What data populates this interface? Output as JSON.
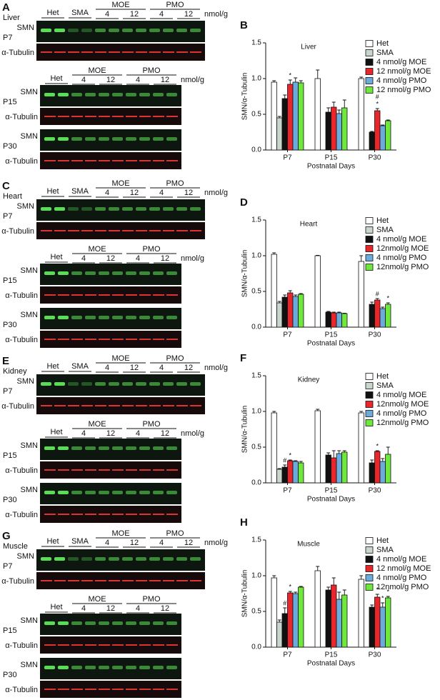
{
  "blot_panels": [
    {
      "letter": "A",
      "tissue": "Liver",
      "sections": [
        {
          "groups": [
            {
              "name": "Het"
            },
            {
              "name": "SMA"
            },
            {
              "name": "MOE",
              "doses": [
                "4",
                "12"
              ]
            },
            {
              "name": "PMO",
              "doses": [
                "4",
                "12"
              ]
            }
          ],
          "unit": "nmol/g",
          "ages": [
            {
              "age": "P7",
              "rows": [
                "SMN",
                "α-Tubulin"
              ]
            }
          ]
        },
        {
          "groups": [
            {
              "name": "Het"
            },
            {
              "name": "MOE",
              "doses": [
                "4",
                "12"
              ]
            },
            {
              "name": "PMO",
              "doses": [
                "4",
                "12"
              ]
            }
          ],
          "unit": "nmol/g",
          "ages": [
            {
              "age": "P15",
              "rows": [
                "SMN",
                "α-Tubulin"
              ]
            },
            {
              "age": "P30",
              "rows": [
                "SMN",
                "α-Tubulin"
              ]
            }
          ]
        }
      ]
    },
    {
      "letter": "C",
      "tissue": "Heart",
      "sections": [
        {
          "groups": [
            {
              "name": "Het"
            },
            {
              "name": "SMA"
            },
            {
              "name": "MOE",
              "doses": [
                "4",
                "12"
              ]
            },
            {
              "name": "PMO",
              "doses": [
                "4",
                "12"
              ]
            }
          ],
          "unit": "nmol/g",
          "ages": [
            {
              "age": "P7",
              "rows": [
                "SMN",
                "α-Tubulin"
              ]
            }
          ]
        },
        {
          "groups": [
            {
              "name": "Het"
            },
            {
              "name": "MOE",
              "doses": [
                "4",
                "12"
              ]
            },
            {
              "name": "PMO",
              "doses": [
                "4",
                "12"
              ]
            }
          ],
          "unit": "nmol/g",
          "ages": [
            {
              "age": "P15",
              "rows": [
                "SMN",
                "α-Tubulin"
              ]
            },
            {
              "age": "P30",
              "rows": [
                "SMN",
                "α-Tubulin"
              ]
            }
          ]
        }
      ]
    },
    {
      "letter": "E",
      "tissue": "Kidney",
      "sections": [
        {
          "groups": [
            {
              "name": "Het"
            },
            {
              "name": "SMA"
            },
            {
              "name": "MOE",
              "doses": [
                "4",
                "12"
              ]
            },
            {
              "name": "PMO",
              "doses": [
                "4",
                "12"
              ]
            }
          ],
          "unit": "nmol/g",
          "ages": [
            {
              "age": "P7",
              "rows": [
                "SMN",
                "α-Tubulin"
              ]
            }
          ]
        },
        {
          "groups": [
            {
              "name": "Het"
            },
            {
              "name": "MOE",
              "doses": [
                "4",
                "12"
              ]
            },
            {
              "name": "PMO",
              "doses": [
                "4",
                "12"
              ]
            }
          ],
          "unit": "nmol/g",
          "ages": [
            {
              "age": "P15",
              "rows": [
                "SMN",
                "α-Tubulin"
              ]
            },
            {
              "age": "P30",
              "rows": [
                "SMN",
                "α-Tubulin"
              ]
            }
          ]
        }
      ]
    },
    {
      "letter": "G",
      "tissue": "Muscle",
      "sections": [
        {
          "groups": [
            {
              "name": "Het"
            },
            {
              "name": "SMA"
            },
            {
              "name": "MOE",
              "doses": [
                "4",
                "12"
              ]
            },
            {
              "name": "PMO",
              "doses": [
                "4",
                "12"
              ]
            }
          ],
          "unit": "nmol/g",
          "ages": [
            {
              "age": "P7",
              "rows": [
                "SMN",
                "α-Tubulin"
              ]
            }
          ]
        },
        {
          "groups": [
            {
              "name": "Het"
            },
            {
              "name": "MOE",
              "doses": [
                "4",
                "12"
              ]
            },
            {
              "name": "PMO",
              "doses": [
                "4",
                "12"
              ]
            }
          ],
          "ages": [
            {
              "age": "P15",
              "rows": [
                "SMN",
                "α-Tubulin"
              ]
            },
            {
              "age": "P30",
              "rows": [
                "SMN",
                "α-Tubulin"
              ]
            }
          ]
        }
      ]
    }
  ],
  "chart_data": [
    {
      "type": "bar",
      "panel_label": "B",
      "title": "Liver",
      "y_label": "SMN/α-Tubulin",
      "x_label": "Postnatal Days",
      "categories": [
        "P7",
        "P15",
        "P30"
      ],
      "ylim": [
        0,
        1.5
      ],
      "yticks": [
        {
          "value": 0,
          "label": "0.0"
        },
        0.5,
        {
          "value": 1,
          "label": "1.0"
        },
        1.5
      ],
      "legend": "top-right",
      "series": [
        {
          "name": "Het",
          "color": "#ffffff",
          "values": [
            0.95,
            1.0,
            1.0
          ],
          "errors": [
            0.02,
            0.12,
            0.02
          ]
        },
        {
          "name": "SMA",
          "color": "#c9d6ce",
          "values": [
            0.45,
            null,
            null
          ],
          "errors": [
            0.02,
            null,
            null
          ]
        },
        {
          "name": "4 nmol/g MOE",
          "color": "#111111",
          "values": [
            0.72,
            0.53,
            0.25
          ],
          "errors": [
            0.05,
            0.06,
            0.01
          ]
        },
        {
          "name": "12 nmol/g MOE",
          "color": "#e8262b",
          "values": [
            0.92,
            0.6,
            0.55
          ],
          "errors": [
            0.06,
            0.07,
            0.03
          ]
        },
        {
          "name": "4 nmol/g PMO",
          "color": "#6cacdc",
          "values": [
            0.95,
            0.51,
            0.34
          ],
          "errors": [
            0.06,
            0.05,
            0.01
          ]
        },
        {
          "name": "12 nmol/g PMO",
          "color": "#6ee83a",
          "values": [
            0.94,
            0.59,
            0.41
          ],
          "errors": [
            0.03,
            0.11,
            0.01
          ]
        }
      ],
      "annotations": [
        {
          "text": "*",
          "series": 3,
          "category": 0
        },
        {
          "text": "*",
          "series": 3,
          "category": 2
        },
        {
          "text": "#",
          "series": 3,
          "category": 2
        }
      ]
    },
    {
      "type": "bar",
      "panel_label": "D",
      "title": "Heart",
      "y_label": "SMN/α-Tubulin",
      "x_label": "Postnatal Days",
      "categories": [
        "P7",
        "P15",
        "P30"
      ],
      "ylim": [
        0,
        1.5
      ],
      "yticks": [
        {
          "value": 0,
          "label": "0.0"
        },
        0.5,
        {
          "value": 1,
          "label": "1.0"
        },
        1.5
      ],
      "legend": "top-right",
      "series": [
        {
          "name": "Het",
          "color": "#ffffff",
          "values": [
            1.02,
            1.0,
            0.92
          ],
          "errors": [
            0.02,
            0.005,
            0.08
          ]
        },
        {
          "name": "SMA",
          "color": "#c9d6ce",
          "values": [
            0.34,
            null,
            null
          ],
          "errors": [
            0.02,
            null,
            null
          ]
        },
        {
          "name": "4 nmol/g MOE",
          "color": "#111111",
          "values": [
            0.42,
            0.21,
            0.32
          ],
          "errors": [
            0.03,
            0.01,
            0.03
          ]
        },
        {
          "name": "12nmol/g MOE",
          "color": "#e8262b",
          "values": [
            0.48,
            0.2,
            0.38
          ],
          "errors": [
            0.03,
            0.01,
            0.02
          ]
        },
        {
          "name": "4 nmol/g PMO",
          "color": "#6cacdc",
          "values": [
            0.43,
            0.2,
            0.26
          ],
          "errors": [
            0.02,
            0.01,
            0.02
          ]
        },
        {
          "name": "12nmol/g PMO",
          "color": "#6ee83a",
          "values": [
            0.46,
            0.19,
            0.32
          ],
          "errors": [
            0.01,
            0.005,
            0.02
          ]
        }
      ],
      "annotations": [
        {
          "text": "#",
          "series": 3,
          "category": 2
        },
        {
          "text": "*",
          "series": 5,
          "category": 2
        }
      ]
    },
    {
      "type": "bar",
      "panel_label": "F",
      "title": "Kidney",
      "y_label": "SMN/α-Tubulin",
      "x_label": "Postnatal Days",
      "categories": [
        "P7",
        "P15",
        "P30"
      ],
      "ylim": [
        0,
        1.5
      ],
      "yticks": [
        {
          "value": 0,
          "label": "0.0"
        },
        0.5,
        {
          "value": 1,
          "label": "1.0"
        },
        1.5
      ],
      "legend": "top-right",
      "series": [
        {
          "name": "Het",
          "color": "#ffffff",
          "values": [
            0.98,
            1.01,
            0.98
          ],
          "errors": [
            0.02,
            0.02,
            0.02
          ]
        },
        {
          "name": "SMA",
          "color": "#c9d6ce",
          "values": [
            0.19,
            null,
            null
          ],
          "errors": [
            0.01,
            null,
            null
          ]
        },
        {
          "name": "4 nmol/g MOE",
          "color": "#111111",
          "values": [
            0.22,
            0.39,
            0.28
          ],
          "errors": [
            0.03,
            0.03,
            0.04
          ]
        },
        {
          "name": "12nmol/g MOE",
          "color": "#e8262b",
          "values": [
            0.31,
            0.35,
            0.44
          ],
          "errors": [
            0.01,
            0.1,
            0.01
          ]
        },
        {
          "name": "4 nmol/g PMO",
          "color": "#6cacdc",
          "values": [
            0.3,
            0.41,
            0.3
          ],
          "errors": [
            0.01,
            0.04,
            0.04
          ]
        },
        {
          "name": "12nmol/g PMO",
          "color": "#6ee83a",
          "values": [
            0.28,
            0.43,
            0.4
          ],
          "errors": [
            0.02,
            0.02,
            0.1
          ]
        }
      ],
      "annotations": [
        {
          "text": "#",
          "series": 2,
          "category": 0
        },
        {
          "text": "*",
          "series": 3,
          "category": 0
        },
        {
          "text": "*",
          "series": 3,
          "category": 2
        }
      ]
    },
    {
      "type": "bar",
      "panel_label": "H",
      "title": "Muscle",
      "y_label": "SMN/α-Tubulin",
      "x_label": "Postnatal Days",
      "categories": [
        "P7",
        "P15",
        "P30"
      ],
      "ylim": [
        0,
        1.5
      ],
      "yticks": [
        {
          "value": 0,
          "label": "0.0"
        },
        0.5,
        {
          "value": 1,
          "label": "1.0"
        },
        1.5
      ],
      "legend": "top-right",
      "series": [
        {
          "name": "Het",
          "color": "#ffffff",
          "values": [
            0.97,
            1.07,
            0.95
          ],
          "errors": [
            0.03,
            0.06,
            0.05
          ]
        },
        {
          "name": "SMA",
          "color": "#c9d6ce",
          "values": [
            0.35,
            null,
            null
          ],
          "errors": [
            0.03,
            null,
            null
          ]
        },
        {
          "name": "4 nmol/g MOE",
          "color": "#111111",
          "values": [
            0.47,
            0.8,
            0.56
          ],
          "errors": [
            0.08,
            0.04,
            0.03
          ]
        },
        {
          "name": "12 nmol/g MOE",
          "color": "#e8262b",
          "values": [
            0.76,
            0.87,
            0.7
          ],
          "errors": [
            0.02,
            0.1,
            0.04
          ]
        },
        {
          "name": "4 nmol/g PMO",
          "color": "#6cacdc",
          "values": [
            0.75,
            0.67,
            0.56
          ],
          "errors": [
            0.02,
            0.1,
            0.06
          ]
        },
        {
          "name": "12nmol/g PMO",
          "color": "#6ee83a",
          "values": [
            0.84,
            0.73,
            0.69
          ],
          "errors": [
            0.01,
            0.07,
            0.02
          ]
        }
      ],
      "annotations": [
        {
          "text": "#",
          "series": 2,
          "category": 0
        },
        {
          "text": "*",
          "series": 3,
          "category": 0
        },
        {
          "text": "*",
          "series": 3,
          "category": 2
        },
        {
          "text": "*",
          "series": 4,
          "category": 2
        },
        {
          "text": "*",
          "series": 5,
          "category": 2
        }
      ]
    }
  ]
}
